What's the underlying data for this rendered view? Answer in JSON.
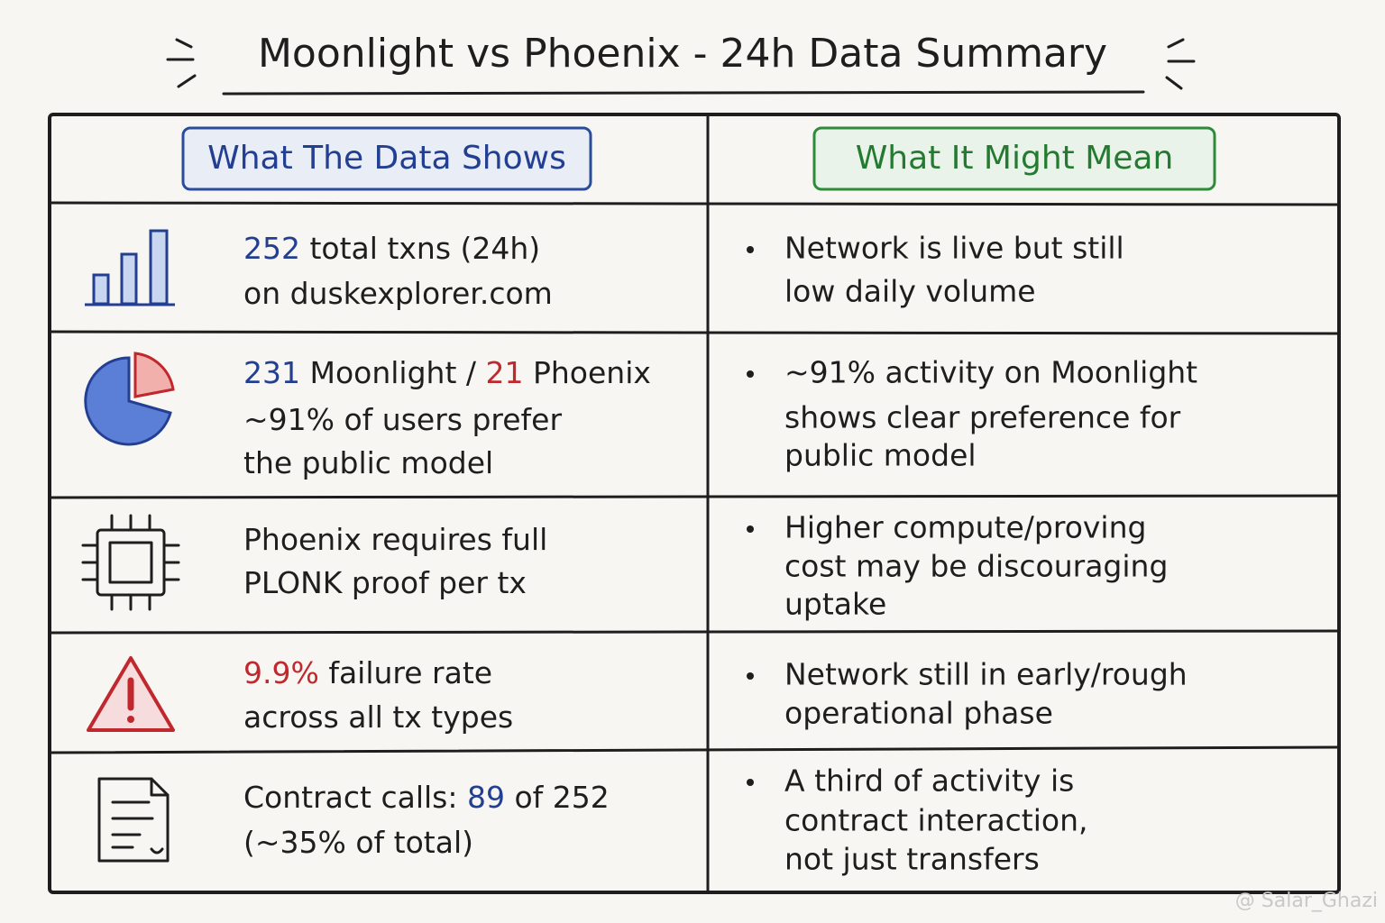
{
  "title": "Moonlight vs Phoenix - 24h Data Summary",
  "headers": [
    "What The Data Shows",
    "What It Might Mean"
  ],
  "rows": [
    {
      "left": [
        [
          {
            "text": "252",
            "color": "#233f91"
          },
          " total txns (24h)"
        ],
        [
          "on duskexplorer.com"
        ]
      ],
      "right": [
        "Network is live but still",
        "low daily volume"
      ]
    },
    {
      "left": [
        [
          {
            "text": "231",
            "color": "#233f91"
          },
          " Moonlight / ",
          {
            "text": "21",
            "color": "#c0282d"
          },
          " Phoenix"
        ],
        [
          "~91% of users prefer"
        ],
        [
          "the public model"
        ]
      ],
      "right": [
        "~91% activity on Moonlight",
        "shows clear preference for",
        "public model"
      ]
    },
    {
      "left": [
        [
          "Phoenix requires full"
        ],
        [
          "PLONK proof per tx"
        ]
      ],
      "right": [
        "Higher compute/proving",
        "cost may be discouraging",
        "uptake"
      ]
    },
    {
      "left": [
        [
          {
            "text": "9.9%",
            "color": "#c0282d"
          },
          " failure rate"
        ],
        [
          "across all tx types"
        ]
      ],
      "right": [
        "Network still in early/rough",
        "operational phase"
      ]
    },
    {
      "left": [
        [
          "Contract calls: ",
          {
            "text": "89",
            "color": "#233f91"
          },
          " of 252"
        ],
        [
          "(~35% of total)"
        ]
      ],
      "right": [
        "A third of activity is",
        "contract interaction,",
        "not just transfers"
      ]
    }
  ],
  "watermark": "@ Salar_Ghazi"
}
